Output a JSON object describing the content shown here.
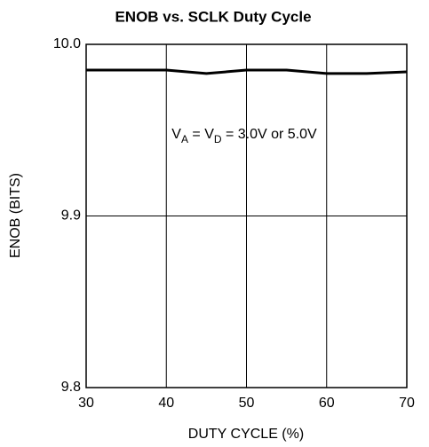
{
  "chart_data": {
    "type": "line",
    "title": "ENOB vs. SCLK Duty Cycle",
    "xlabel": "DUTY CYCLE (%)",
    "ylabel": "ENOB (BITS)",
    "annotation": [
      "V",
      "A",
      " = V",
      "D",
      " = 3.0V or 5.0V"
    ],
    "x": [
      30,
      35,
      40,
      45,
      50,
      55,
      60,
      65,
      70
    ],
    "series": [
      {
        "color": "#000000",
        "values": [
          9.985,
          9.985,
          9.985,
          9.983,
          9.985,
          9.985,
          9.983,
          9.983,
          9.984
        ]
      }
    ],
    "xlim": [
      30,
      70
    ],
    "xticks": [
      30,
      40,
      50,
      60,
      70
    ],
    "ylim": [
      9.8,
      10.0
    ],
    "yticks": [
      9.8,
      9.9,
      {
        "value": 10.0,
        "label": "10.0"
      }
    ],
    "grid": true
  }
}
